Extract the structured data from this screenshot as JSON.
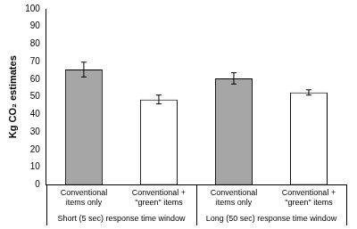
{
  "chart_data": {
    "type": "bar",
    "y_label": "Kg CO₂ estimates",
    "categories": [
      "Conventional items only",
      "Conventional + \"green\" items",
      "Conventional items only",
      "Conventional + \"green\" items"
    ],
    "groups": [
      "Short (5 sec) response time window",
      "Long (50 sec) response time window"
    ],
    "values": [
      65.5,
      48.5,
      60.5,
      52.5
    ],
    "errors": [
      4.2,
      2.5,
      3.2,
      1.5
    ],
    "colors": [
      "#a6a6a6",
      "#ffffff",
      "#a6a6a6",
      "#ffffff"
    ],
    "ylim": [
      0,
      100
    ],
    "yticks": [
      0,
      10,
      20,
      30,
      40,
      50,
      60,
      70,
      80,
      90,
      100
    ],
    "grid": false
  }
}
